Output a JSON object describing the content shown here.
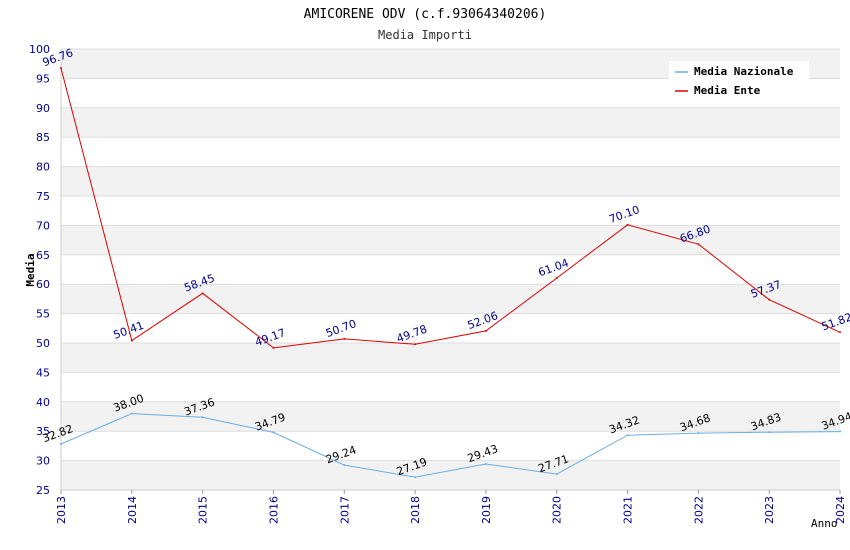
{
  "chart_data": {
    "type": "line",
    "title": "AMICORENE ODV (c.f.93064340206)",
    "subtitle": "Media Importi",
    "xlabel": "Anno",
    "ylabel": "Media",
    "ylim": [
      25,
      100
    ],
    "ytick_step": 5,
    "grid": true,
    "legend_position": "top-right",
    "categories": [
      "2013",
      "2014",
      "2015",
      "2016",
      "2017",
      "2018",
      "2019",
      "2020",
      "2021",
      "2022",
      "2023",
      "2024"
    ],
    "series": [
      {
        "name": "Media Nazionale",
        "color": "#6aaee6",
        "label_color": "#000000",
        "values": [
          32.82,
          38.0,
          37.36,
          34.79,
          29.24,
          27.19,
          29.43,
          27.71,
          34.32,
          34.68,
          34.83,
          34.94
        ]
      },
      {
        "name": "Media Ente",
        "color": "#e00000",
        "label_color": "#00008b",
        "values": [
          96.76,
          50.41,
          58.45,
          49.17,
          50.7,
          49.78,
          52.06,
          61.04,
          70.1,
          66.8,
          57.37,
          51.82
        ]
      }
    ]
  }
}
